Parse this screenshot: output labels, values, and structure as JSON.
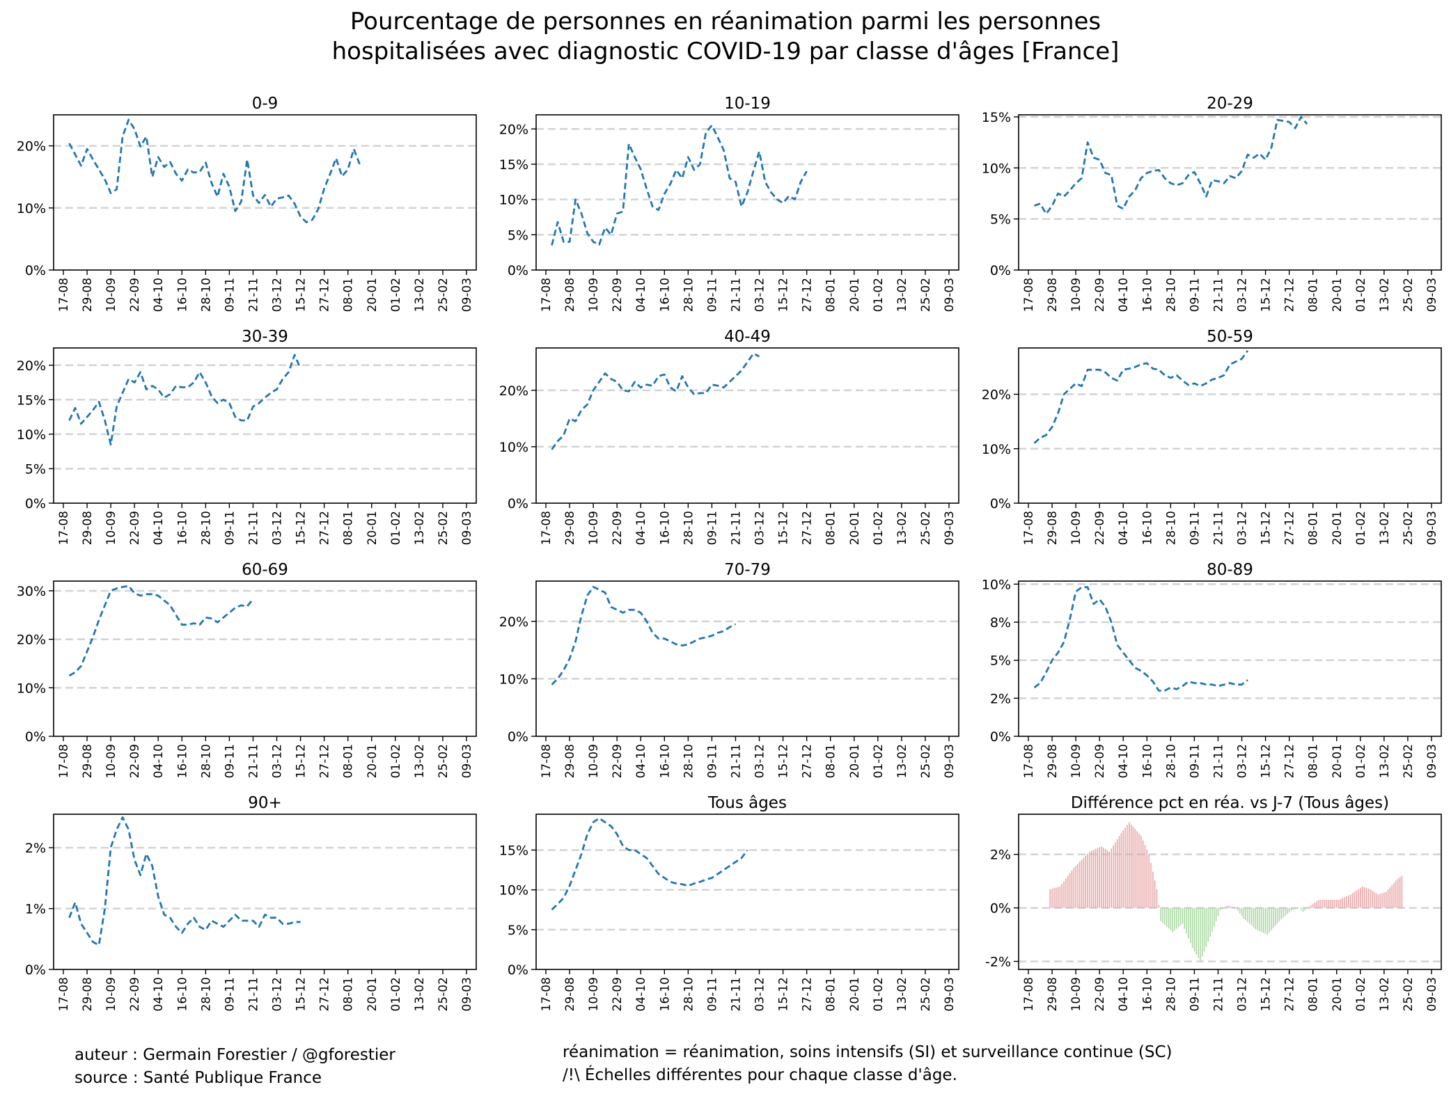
{
  "title_lines": [
    "Pourcentage de personnes en réanimation parmi les personnes",
    "hospitalisées avec diagnostic COVID-19 par classe d'âges [France]"
  ],
  "footer": {
    "left": [
      "auteur : Germain Forestier / @gforestier",
      "source : Santé Publique France"
    ],
    "right": [
      "réanimation = réanimation, soins intensifs (SI) et surveillance continue (SC)",
      "/!\\ Échelles différentes pour chaque classe d'âge."
    ]
  },
  "colors": {
    "line": "#1f77b4",
    "grid": "#d3d3d3",
    "positive": "#e8a3a3",
    "negative": "#a8d8a0"
  },
  "x_ticks": [
    "17-08",
    "29-08",
    "10-09",
    "22-09",
    "04-10",
    "16-10",
    "28-10",
    "09-11",
    "21-11",
    "03-12",
    "15-12",
    "27-12",
    "08-01",
    "20-01",
    "01-02",
    "13-02",
    "25-02",
    "09-03"
  ],
  "x_range": [
    "2020-08-17",
    "2021-03-09"
  ],
  "chart_data": [
    {
      "type": "line",
      "title": "0-9",
      "ylim": [
        0,
        25
      ],
      "yticks": [
        0,
        10,
        20
      ],
      "ytick_labels": [
        "0%",
        "10%",
        "20%"
      ],
      "grid": "y-dashed",
      "series": [
        {
          "x_start": "2020-08-20",
          "step_days": 3,
          "values": [
            20.4,
            18.6,
            16.8,
            19.5,
            17.8,
            16.2,
            14.6,
            12.4,
            13.0,
            21.5,
            24.2,
            22.7,
            19.9,
            21.5,
            15.0,
            18.2,
            16.6,
            17.4,
            15.5,
            14.4,
            16.2,
            15.7,
            15.8,
            17.3,
            14.0,
            11.8,
            15.5,
            13.4,
            9.5,
            11.0,
            17.8,
            12.0,
            10.8,
            12.1,
            10.2,
            11.5,
            11.7,
            12.0,
            10.7,
            8.6,
            7.7,
            8.1,
            9.8,
            13.1,
            15.5,
            18.0,
            15.1,
            16.2,
            19.5,
            17.0
          ]
        }
      ]
    },
    {
      "type": "line",
      "title": "10-19",
      "ylim": [
        0,
        22
      ],
      "yticks": [
        0,
        5,
        10,
        15,
        20
      ],
      "ytick_labels": [
        "0%",
        "5%",
        "10%",
        "15%",
        "20%"
      ],
      "grid": "y-dashed",
      "series": [
        {
          "x_start": "2020-08-20",
          "step_days": 3,
          "values": [
            3.5,
            6.8,
            4.0,
            4.0,
            10.0,
            8.0,
            5.2,
            4.0,
            3.6,
            6.0,
            5.0,
            8.0,
            8.3,
            17.9,
            16.0,
            14.3,
            11.5,
            9.0,
            8.5,
            10.8,
            12.2,
            14.2,
            13.0,
            16.0,
            14.2,
            15.0,
            19.5,
            20.5,
            18.8,
            17.0,
            13.0,
            12.5,
            9.0,
            11.0,
            14.0,
            16.8,
            12.5,
            11.0,
            10.0,
            9.5,
            10.5,
            10.0,
            12.5,
            14.0
          ]
        }
      ]
    },
    {
      "type": "line",
      "title": "20-29",
      "ylim": [
        0,
        15.2
      ],
      "yticks": [
        0,
        5,
        10,
        15
      ],
      "ytick_labels": [
        "0%",
        "5%",
        "10%",
        "15%"
      ],
      "grid": "y-dashed",
      "series": [
        {
          "x_start": "2020-08-20",
          "step_days": 3,
          "values": [
            6.3,
            6.5,
            5.5,
            6.3,
            7.5,
            7.2,
            7.8,
            8.5,
            9.0,
            12.5,
            11.0,
            10.8,
            9.5,
            9.3,
            6.3,
            6.0,
            7.2,
            7.8,
            9.0,
            9.5,
            9.7,
            9.8,
            9.0,
            8.5,
            8.3,
            8.5,
            9.3,
            9.6,
            8.5,
            7.2,
            8.8,
            8.7,
            8.5,
            9.2,
            9.0,
            9.7,
            11.3,
            11.0,
            11.4,
            10.8,
            12.0,
            14.7,
            14.6,
            14.5,
            13.9,
            15.0,
            14.3
          ]
        }
      ]
    },
    {
      "type": "line",
      "title": "30-39",
      "ylim": [
        0,
        22.5
      ],
      "yticks": [
        0,
        5,
        10,
        15,
        20
      ],
      "ytick_labels": [
        "0%",
        "5%",
        "10%",
        "15%",
        "20%"
      ],
      "grid": "y-dashed",
      "series": [
        {
          "x_start": "2020-08-20",
          "step_days": 3,
          "values": [
            12.0,
            13.8,
            11.5,
            12.5,
            13.5,
            14.7,
            12.0,
            8.5,
            14.0,
            16.0,
            18.0,
            17.5,
            19.0,
            16.5,
            17.0,
            16.5,
            15.3,
            15.8,
            17.0,
            16.8,
            16.8,
            17.5,
            19.0,
            17.5,
            15.5,
            14.5,
            15.0,
            14.5,
            12.5,
            12.0,
            12.0,
            14.0,
            14.5,
            15.3,
            16.0,
            16.5,
            18.0,
            19.0,
            21.5,
            19.5
          ]
        }
      ]
    },
    {
      "type": "line",
      "title": "40-49",
      "ylim": [
        0,
        27.5
      ],
      "yticks": [
        0,
        10,
        20
      ],
      "ytick_labels": [
        "0%",
        "10%",
        "20%"
      ],
      "grid": "y-dashed",
      "series": [
        {
          "x_start": "2020-08-20",
          "step_days": 3,
          "values": [
            9.5,
            11.0,
            12.0,
            15.0,
            14.5,
            16.5,
            17.5,
            20.0,
            21.5,
            23.0,
            22.0,
            21.5,
            20.0,
            19.8,
            21.5,
            20.5,
            21.0,
            20.8,
            22.5,
            22.8,
            20.5,
            19.8,
            22.5,
            20.5,
            19.3,
            19.5,
            19.5,
            21.0,
            20.8,
            20.5,
            21.5,
            22.5,
            23.5,
            25.0,
            26.5,
            26.0
          ]
        }
      ]
    },
    {
      "type": "line",
      "title": "50-59",
      "ylim": [
        0,
        28.5
      ],
      "yticks": [
        0,
        10,
        20
      ],
      "ytick_labels": [
        "0%",
        "10%",
        "20%"
      ],
      "grid": "y-dashed",
      "series": [
        {
          "x_start": "2020-08-20",
          "step_days": 3,
          "values": [
            11.0,
            12.0,
            12.5,
            14.0,
            16.5,
            20.0,
            21.0,
            22.0,
            21.5,
            24.5,
            24.5,
            24.5,
            24.0,
            23.0,
            22.5,
            24.5,
            24.7,
            25.0,
            25.5,
            25.7,
            24.7,
            24.5,
            23.5,
            23.0,
            23.5,
            22.5,
            21.7,
            22.0,
            21.5,
            22.0,
            22.7,
            23.0,
            23.5,
            25.5,
            26.0,
            26.5,
            28.0
          ]
        }
      ]
    },
    {
      "type": "line",
      "title": "60-69",
      "ylim": [
        0,
        32
      ],
      "yticks": [
        0,
        10,
        20,
        30
      ],
      "ytick_labels": [
        "0%",
        "10%",
        "20%",
        "30%"
      ],
      "grid": "y-dashed",
      "series": [
        {
          "x_start": "2020-08-20",
          "step_days": 3,
          "values": [
            12.5,
            13.2,
            14.5,
            17.5,
            20.5,
            24.0,
            27.0,
            30.0,
            30.5,
            30.8,
            31.0,
            29.5,
            29.0,
            29.3,
            29.3,
            29.0,
            28.0,
            27.0,
            25.0,
            23.0,
            23.0,
            23.3,
            23.0,
            24.5,
            24.3,
            23.5,
            24.5,
            25.5,
            26.5,
            27.0,
            26.8,
            28.3
          ]
        }
      ]
    },
    {
      "type": "line",
      "title": "70-79",
      "ylim": [
        0,
        27
      ],
      "yticks": [
        0,
        10,
        20
      ],
      "ytick_labels": [
        "0%",
        "10%",
        "20%"
      ],
      "grid": "y-dashed",
      "series": [
        {
          "x_start": "2020-08-20",
          "step_days": 3,
          "values": [
            9.0,
            10.0,
            11.5,
            13.5,
            16.5,
            21.0,
            24.5,
            26.0,
            25.5,
            25.0,
            22.5,
            22.0,
            21.5,
            22.0,
            22.0,
            21.5,
            20.0,
            18.0,
            17.0,
            17.0,
            16.5,
            16.0,
            15.8,
            16.0,
            16.5,
            17.0,
            17.2,
            17.5,
            18.0,
            18.3,
            19.0,
            19.5
          ]
        }
      ]
    },
    {
      "type": "line",
      "title": "80-89",
      "ylim": [
        0,
        10.2
      ],
      "yticks": [
        0,
        2.5,
        5,
        7.5,
        10
      ],
      "ytick_labels": [
        "0%",
        "2%",
        "5%",
        "8%",
        "10%"
      ],
      "grid": "y-dashed",
      "series": [
        {
          "x_start": "2020-08-20",
          "step_days": 3,
          "values": [
            3.2,
            3.5,
            4.2,
            5.0,
            5.5,
            6.2,
            7.7,
            9.5,
            9.8,
            9.8,
            8.7,
            9.0,
            8.5,
            7.5,
            6.0,
            5.5,
            5.0,
            4.5,
            4.3,
            4.0,
            3.6,
            3.0,
            3.0,
            3.2,
            3.1,
            3.3,
            3.6,
            3.5,
            3.5,
            3.4,
            3.4,
            3.3,
            3.4,
            3.5,
            3.4,
            3.4,
            3.7
          ]
        }
      ]
    },
    {
      "type": "line",
      "title": "90+",
      "ylim": [
        0,
        2.55
      ],
      "yticks": [
        0,
        1,
        2
      ],
      "ytick_labels": [
        "0%",
        "1%",
        "2%"
      ],
      "grid": "y-dashed",
      "series": [
        {
          "x_start": "2020-08-20",
          "step_days": 3,
          "values": [
            0.85,
            1.1,
            0.75,
            0.6,
            0.45,
            0.4,
            1.0,
            2.0,
            2.3,
            2.5,
            2.3,
            1.8,
            1.55,
            1.9,
            1.7,
            1.2,
            0.9,
            0.85,
            0.7,
            0.6,
            0.75,
            0.85,
            0.7,
            0.65,
            0.8,
            0.75,
            0.7,
            0.8,
            0.9,
            0.8,
            0.8,
            0.8,
            0.7,
            0.9,
            0.85,
            0.85,
            0.75,
            0.75,
            0.78,
            0.78
          ]
        }
      ]
    },
    {
      "type": "line",
      "title": "Tous âges",
      "ylim": [
        0,
        19.5
      ],
      "yticks": [
        0,
        5,
        10,
        15
      ],
      "ytick_labels": [
        "0%",
        "5%",
        "10%",
        "15%"
      ],
      "grid": "y-dashed",
      "series": [
        {
          "x_start": "2020-08-20",
          "step_days": 3,
          "values": [
            7.5,
            8.2,
            9.0,
            10.5,
            12.5,
            14.5,
            17.0,
            18.5,
            19.0,
            18.5,
            18.0,
            17.0,
            15.5,
            15.0,
            15.0,
            14.5,
            14.0,
            13.0,
            12.0,
            11.5,
            11.0,
            10.8,
            10.7,
            10.5,
            10.8,
            11.0,
            11.3,
            11.5,
            12.0,
            12.5,
            13.0,
            13.5,
            14.0,
            15.0
          ]
        }
      ]
    },
    {
      "type": "bar",
      "title": "Différence pct en réa. vs J-7 (Tous âges)",
      "ylim": [
        -2.3,
        3.5
      ],
      "yticks": [
        -2,
        0,
        2
      ],
      "ytick_labels": [
        "-2%",
        "0%",
        "2%"
      ],
      "grid": "y-dashed",
      "series": [
        {
          "x_start": "2020-08-28",
          "step_days": 1,
          "colors_by_sign": true,
          "anchors": [
            [
              0,
              0.7
            ],
            [
              5,
              0.8
            ],
            [
              12,
              1.5
            ],
            [
              20,
              2.1
            ],
            [
              26,
              2.3
            ],
            [
              30,
              2.1
            ],
            [
              36,
              2.8
            ],
            [
              40,
              3.2
            ],
            [
              46,
              2.7
            ],
            [
              50,
              2.0
            ],
            [
              54,
              0.7
            ],
            [
              56,
              -0.5
            ],
            [
              62,
              -0.9
            ],
            [
              67,
              -0.6
            ],
            [
              72,
              -1.5
            ],
            [
              76,
              -2.0
            ],
            [
              82,
              -0.9
            ],
            [
              86,
              -0.1
            ],
            [
              90,
              0.1
            ],
            [
              94,
              0.0
            ],
            [
              98,
              -0.4
            ],
            [
              104,
              -0.8
            ],
            [
              110,
              -1.0
            ],
            [
              116,
              -0.5
            ],
            [
              122,
              -0.1
            ],
            [
              126,
              0.0
            ],
            [
              128,
              -0.15
            ],
            [
              132,
              0.1
            ],
            [
              136,
              0.3
            ],
            [
              146,
              0.3
            ],
            [
              152,
              0.5
            ],
            [
              158,
              0.8
            ],
            [
              162,
              0.7
            ],
            [
              166,
              0.5
            ],
            [
              170,
              0.6
            ],
            [
              176,
              1.1
            ],
            [
              178,
              1.2
            ]
          ]
        }
      ]
    }
  ]
}
